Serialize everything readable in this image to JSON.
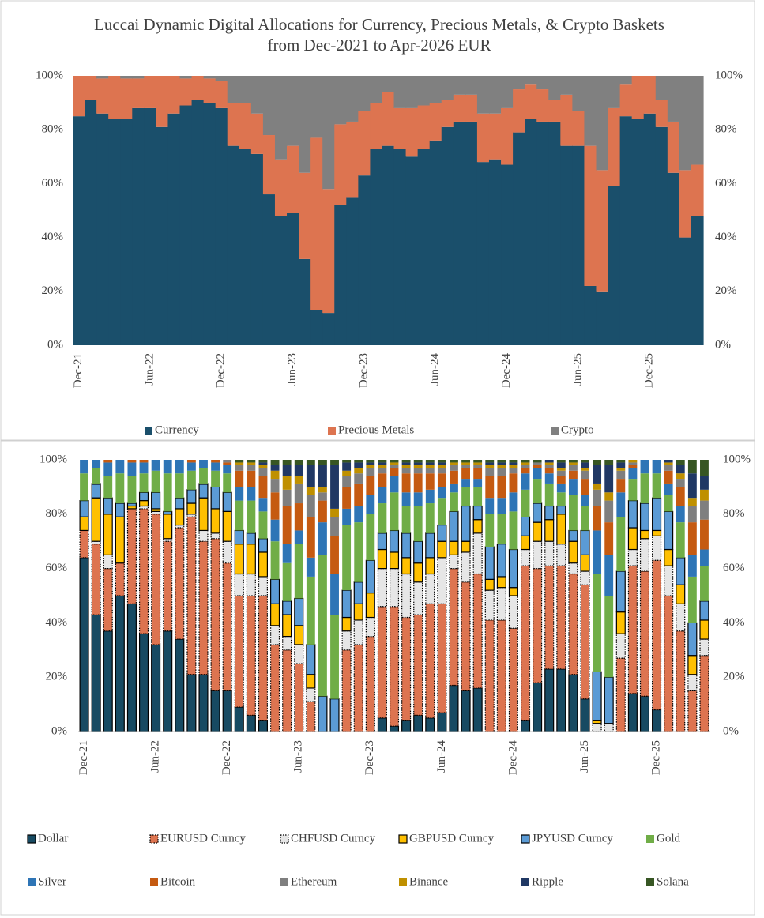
{
  "chart_data": [
    {
      "type": "area",
      "stacked": true,
      "legend": "bottom",
      "title": "Luccai Dynamic Digital Allocations for Currency, Precious Metals, & Crypto Baskets from Dec-2021 to Apr-2026 EUR",
      "categories": [
        "Dec-21",
        null,
        null,
        null,
        null,
        null,
        "Jun-22",
        null,
        null,
        null,
        null,
        null,
        "Dec-22",
        null,
        null,
        null,
        null,
        null,
        "Jun-23",
        null,
        null,
        null,
        null,
        null,
        "Dec-23",
        null,
        null,
        null,
        null,
        null,
        "Jun-24",
        null,
        null,
        null,
        null,
        null,
        "Dec-24",
        null,
        null,
        null,
        null,
        null,
        "Jun-25",
        null,
        null,
        null,
        null,
        null,
        "Dec-25",
        null,
        null,
        null,
        null
      ],
      "ylim": [
        0,
        100
      ],
      "yticks": [
        {
          "value": 0,
          "label": "0%"
        },
        {
          "value": 20,
          "label": "20%"
        },
        {
          "value": 40,
          "label": "40%"
        },
        {
          "value": 60,
          "label": "60%"
        },
        {
          "value": 80,
          "label": "80%"
        },
        {
          "value": 100,
          "label": "100%"
        }
      ],
      "y2lim": [
        0,
        100
      ],
      "y2ticks": [
        {
          "value": 0,
          "label": "0%"
        },
        {
          "value": 20,
          "label": "20%"
        },
        {
          "value": 40,
          "label": "40%"
        },
        {
          "value": 60,
          "label": "60%"
        },
        {
          "value": 80,
          "label": "80%"
        },
        {
          "value": 100,
          "label": "100%"
        }
      ],
      "series": [
        {
          "name": "Currency",
          "color": "#1a4f6b",
          "values": [
            85,
            91,
            86,
            84,
            84,
            88,
            88,
            81,
            86,
            89,
            91,
            90,
            88,
            74,
            73,
            71,
            56,
            48,
            49,
            32,
            13,
            12,
            52,
            55,
            63,
            73,
            74,
            73,
            70,
            73,
            76,
            81,
            83,
            83,
            68,
            69,
            67,
            79,
            84,
            83,
            83,
            74,
            74,
            22,
            20,
            59,
            85,
            84,
            86,
            81,
            64,
            40,
            48
          ]
        },
        {
          "name": "Precious Metals",
          "color": "#dd7450",
          "values": [
            15,
            9,
            13,
            16,
            15,
            11,
            12,
            19,
            14,
            10,
            9,
            9,
            10,
            16,
            17,
            15,
            22,
            21,
            25,
            32,
            64,
            46,
            30,
            28,
            24,
            17,
            20,
            15,
            18,
            16,
            14,
            10,
            10,
            10,
            18,
            17,
            21,
            16,
            13,
            12,
            8,
            19,
            13,
            52,
            45,
            29,
            12,
            16,
            14,
            10,
            19,
            25,
            19
          ]
        },
        {
          "name": "Crypto",
          "color": "#808080",
          "values": [
            0,
            0,
            1,
            0,
            1,
            1,
            0,
            0,
            0,
            1,
            0,
            1,
            2,
            10,
            10,
            14,
            22,
            31,
            26,
            36,
            23,
            42,
            18,
            17,
            13,
            10,
            6,
            12,
            12,
            11,
            10,
            9,
            7,
            7,
            14,
            14,
            12,
            5,
            3,
            5,
            9,
            7,
            13,
            26,
            35,
            12,
            3,
            0,
            0,
            9,
            17,
            35,
            33
          ]
        }
      ]
    },
    {
      "type": "bar",
      "stacked": true,
      "legend": "bottom",
      "categories": [
        "Dec-21",
        null,
        null,
        null,
        null,
        null,
        "Jun-22",
        null,
        null,
        null,
        null,
        null,
        "Dec-22",
        null,
        null,
        null,
        null,
        null,
        "Jun-23",
        null,
        null,
        null,
        null,
        null,
        "Dec-23",
        null,
        null,
        null,
        null,
        null,
        "Jun-24",
        null,
        null,
        null,
        null,
        null,
        "Dec-24",
        null,
        null,
        null,
        null,
        null,
        "Jun-25",
        null,
        null,
        null,
        null,
        null,
        "Dec-25",
        null,
        null,
        null,
        null
      ],
      "ylim": [
        0,
        100
      ],
      "yticks": [
        {
          "value": 0,
          "label": "0%"
        },
        {
          "value": 20,
          "label": "20%"
        },
        {
          "value": 40,
          "label": "40%"
        },
        {
          "value": 60,
          "label": "60%"
        },
        {
          "value": 80,
          "label": "80%"
        },
        {
          "value": 100,
          "label": "100%"
        }
      ],
      "y2lim": [
        0,
        100
      ],
      "y2ticks": [
        {
          "value": 0,
          "label": "0%"
        },
        {
          "value": 20,
          "label": "20%"
        },
        {
          "value": 40,
          "label": "40%"
        },
        {
          "value": 60,
          "label": "60%"
        },
        {
          "value": 80,
          "label": "80%"
        },
        {
          "value": 100,
          "label": "100%"
        }
      ],
      "series": [
        {
          "name": "Dollar",
          "color": "#174a62",
          "values": [
            64,
            43,
            37,
            50,
            47,
            36,
            32,
            37,
            34,
            21,
            21,
            15,
            15,
            9,
            6,
            4,
            0,
            0,
            0,
            0,
            0,
            0,
            0,
            0,
            0,
            5,
            2,
            4,
            6,
            5,
            7,
            17,
            15,
            16,
            0,
            0,
            0,
            4,
            18,
            23,
            23,
            21,
            12,
            0,
            0,
            0,
            14,
            13,
            8,
            0,
            0,
            0,
            0
          ]
        },
        {
          "name": "EURUSD Curncy",
          "color": "#dd7450",
          "values": [
            10,
            26,
            23,
            12,
            35,
            46,
            48,
            33,
            41,
            58,
            49,
            56,
            47,
            41,
            44,
            46,
            32,
            30,
            25,
            11,
            0,
            0,
            30,
            32,
            35,
            41,
            44,
            38,
            37,
            42,
            40,
            43,
            40,
            42,
            41,
            41,
            38,
            57,
            42,
            38,
            38,
            37,
            42,
            0,
            0,
            27,
            47,
            46,
            55,
            50,
            37,
            15,
            28
          ]
        },
        {
          "name": "CHFUSD Curncy",
          "color": "#e6e6e6",
          "values": [
            0,
            1,
            5,
            0,
            0,
            1,
            1,
            1,
            1,
            1,
            4,
            2,
            8,
            8,
            8,
            7,
            7,
            5,
            7,
            5,
            0,
            0,
            7,
            9,
            7,
            14,
            14,
            16,
            12,
            11,
            17,
            5,
            11,
            15,
            11,
            12,
            12,
            6,
            10,
            9,
            8,
            4,
            5,
            3,
            3,
            9,
            6,
            12,
            9,
            11,
            10,
            6,
            6
          ]
        },
        {
          "name": "GBPUSD Curncy",
          "color": "#ffc000",
          "values": [
            5,
            16,
            15,
            17,
            1,
            2,
            1,
            9,
            6,
            4,
            12,
            9,
            11,
            11,
            11,
            9,
            8,
            8,
            7,
            5,
            0,
            0,
            5,
            6,
            9,
            7,
            6,
            6,
            7,
            6,
            6,
            5,
            4,
            5,
            4,
            4,
            3,
            5,
            7,
            8,
            11,
            8,
            6,
            1,
            0,
            8,
            8,
            3,
            2,
            6,
            7,
            7,
            7
          ]
        },
        {
          "name": "JPYUSD Curncy",
          "color": "#5b9bd5",
          "values": [
            6,
            5,
            6,
            5,
            1,
            3,
            6,
            1,
            4,
            5,
            5,
            8,
            7,
            5,
            4,
            5,
            9,
            5,
            10,
            11,
            13,
            12,
            10,
            8,
            12,
            6,
            8,
            9,
            8,
            9,
            6,
            11,
            13,
            5,
            12,
            12,
            14,
            7,
            7,
            5,
            3,
            4,
            9,
            18,
            17,
            15,
            10,
            10,
            12,
            14,
            10,
            12,
            7
          ]
        },
        {
          "name": "Gold",
          "color": "#70ad47",
          "values": [
            10,
            6,
            8,
            11,
            10,
            7,
            8,
            14,
            9,
            7,
            6,
            6,
            7,
            11,
            12,
            10,
            14,
            14,
            20,
            25,
            52,
            31,
            24,
            22,
            17,
            11,
            14,
            10,
            13,
            11,
            10,
            7,
            7,
            7,
            12,
            11,
            14,
            10,
            9,
            8,
            5,
            13,
            9,
            36,
            30,
            20,
            8,
            11,
            9,
            6,
            13,
            17,
            13
          ]
        },
        {
          "name": "Silver",
          "color": "#2e75b6",
          "values": [
            5,
            3,
            5,
            5,
            5,
            4,
            4,
            5,
            5,
            3,
            3,
            3,
            3,
            5,
            5,
            5,
            8,
            7,
            5,
            7,
            12,
            15,
            6,
            6,
            7,
            6,
            6,
            5,
            5,
            5,
            4,
            3,
            3,
            3,
            6,
            6,
            7,
            6,
            4,
            4,
            3,
            6,
            4,
            16,
            15,
            9,
            4,
            5,
            5,
            4,
            6,
            8,
            6
          ]
        },
        {
          "name": "Bitcoin",
          "color": "#c55a11",
          "values": [
            0,
            0,
            1,
            0,
            1,
            1,
            0,
            0,
            0,
            1,
            0,
            1,
            1,
            6,
            6,
            8,
            10,
            14,
            10,
            15,
            8,
            14,
            8,
            8,
            7,
            5,
            3,
            7,
            7,
            6,
            5,
            5,
            4,
            4,
            8,
            8,
            7,
            2,
            1,
            2,
            3,
            3,
            6,
            9,
            12,
            5,
            1,
            0,
            0,
            5,
            7,
            12,
            11
          ]
        },
        {
          "name": "Ethereum",
          "color": "#7f7f7f",
          "values": [
            0,
            0,
            0,
            0,
            0,
            0,
            0,
            0,
            0,
            0,
            0,
            0,
            1,
            2,
            2,
            3,
            5,
            6,
            7,
            8,
            3,
            7,
            4,
            4,
            3,
            2,
            1,
            2,
            2,
            2,
            2,
            2,
            1,
            1,
            3,
            3,
            2,
            1,
            1,
            1,
            2,
            2,
            3,
            6,
            8,
            3,
            1,
            0,
            0,
            2,
            3,
            6,
            7
          ]
        },
        {
          "name": "Binance",
          "color": "#bf9000",
          "values": [
            0,
            0,
            0,
            0,
            0,
            0,
            0,
            0,
            0,
            0,
            0,
            0,
            0,
            1,
            1,
            1,
            3,
            5,
            3,
            3,
            2,
            3,
            2,
            2,
            1,
            1,
            1,
            1,
            1,
            1,
            1,
            1,
            1,
            1,
            1,
            1,
            1,
            1,
            0,
            1,
            1,
            1,
            1,
            2,
            3,
            1,
            1,
            0,
            0,
            1,
            2,
            3,
            4
          ]
        },
        {
          "name": "Ripple",
          "color": "#203864",
          "values": [
            0,
            0,
            0,
            0,
            0,
            0,
            0,
            0,
            0,
            0,
            0,
            0,
            0,
            0,
            0,
            1,
            2,
            4,
            4,
            8,
            8,
            16,
            3,
            2,
            1,
            1,
            0,
            1,
            1,
            1,
            1,
            0,
            0,
            0,
            1,
            1,
            1,
            0,
            0,
            1,
            2,
            0,
            2,
            7,
            10,
            2,
            0,
            0,
            0,
            1,
            3,
            9,
            5
          ]
        },
        {
          "name": "Solana",
          "color": "#375623",
          "values": [
            0,
            0,
            0,
            0,
            0,
            0,
            0,
            0,
            0,
            0,
            0,
            0,
            0,
            1,
            1,
            1,
            2,
            2,
            2,
            2,
            2,
            2,
            1,
            1,
            1,
            1,
            1,
            1,
            1,
            1,
            1,
            1,
            1,
            1,
            1,
            1,
            1,
            1,
            1,
            0,
            1,
            1,
            1,
            2,
            2,
            1,
            0,
            0,
            0,
            0,
            2,
            5,
            6
          ]
        }
      ]
    }
  ]
}
